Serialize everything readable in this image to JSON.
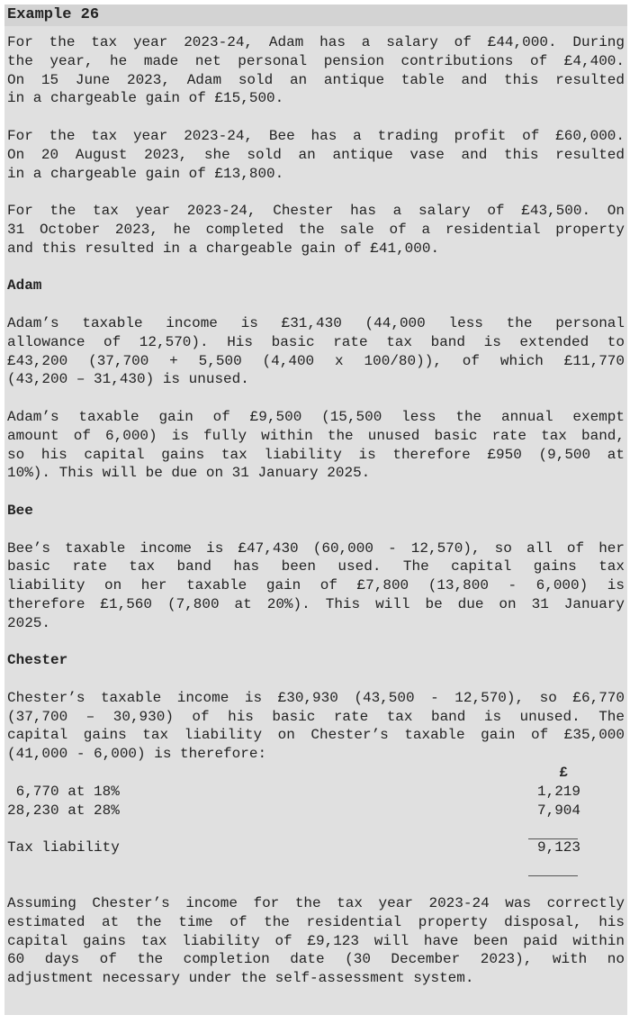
{
  "title": "Example 26",
  "sections": [
    {
      "heading": "",
      "paragraphs": [
        [
          "For the tax year 2023-24, Adam has a salary of £44,000. During",
          "the year, he made net personal pension contributions of £4,400.",
          "On 15 June 2023, Adam sold an antique table and this resulted",
          "in a chargeable gain of £15,500."
        ],
        [
          "For the tax year 2023-24, Bee has a trading profit of £60,000.",
          "On 20 August 2023, she sold an antique vase and this resulted",
          "in a chargeable gain of £13,800."
        ],
        [
          "For the tax year 2023-24, Chester has a salary of £43,500. On",
          "31 October 2023, he completed the sale of a residential property",
          "and this resulted in a chargeable gain of £41,000."
        ]
      ]
    },
    {
      "heading": "Adam",
      "paragraphs": [
        [
          "Adam’s taxable income is £31,430 (44,000 less the personal",
          "allowance of 12,570). His basic rate tax band is extended to",
          "£43,200 (37,700 + 5,500 (4,400 x 100/80)), of which £11,770",
          "(43,200 – 31,430) is unused."
        ],
        [
          "Adam’s taxable gain of £9,500 (15,500 less the annual exempt",
          "amount of 6,000) is fully within the unused basic rate tax band,",
          "so his capital gains tax liability is therefore £950 (9,500 at",
          "10%). This will be due on 31 January 2025."
        ]
      ]
    },
    {
      "heading": "Bee",
      "paragraphs": [
        [
          "Bee’s taxable income is £47,430 (60,000 - 12,570), so all of her",
          "basic rate tax band has been used. The capital gains tax",
          "liability on her taxable gain of £7,800 (13,800 - 6,000) is",
          "therefore £1,560 (7,800 at 20%). This will be due on 31 January",
          "2025."
        ]
      ]
    },
    {
      "heading": "Chester",
      "paragraphs": [
        [
          "Chester’s taxable income is £30,930 (43,500 - 12,570), so £6,770",
          "(37,700 – 30,930) of his basic rate tax band is unused. The",
          "capital gains tax liability on Chester’s taxable gain of £35,000",
          "(41,000 - 6,000) is therefore:"
        ]
      ]
    }
  ],
  "table": {
    "currency_header": "£",
    "rows": [
      {
        "label": " 6,770 at 18%",
        "amount": "1,219"
      },
      {
        "label": "28,230 at 28%",
        "amount": "7,904"
      }
    ],
    "total": {
      "label": "Tax liability",
      "amount": "9,123"
    }
  },
  "closing": [
    "Assuming Chester’s income for the tax year 2023-24 was correctly",
    "estimated at the time of the residential property disposal, his",
    "capital gains tax liability of £9,123 will have been paid within",
    "60 days of the completion date (30 December 2023), with no",
    "adjustment necessary under the self-assessment system."
  ]
}
